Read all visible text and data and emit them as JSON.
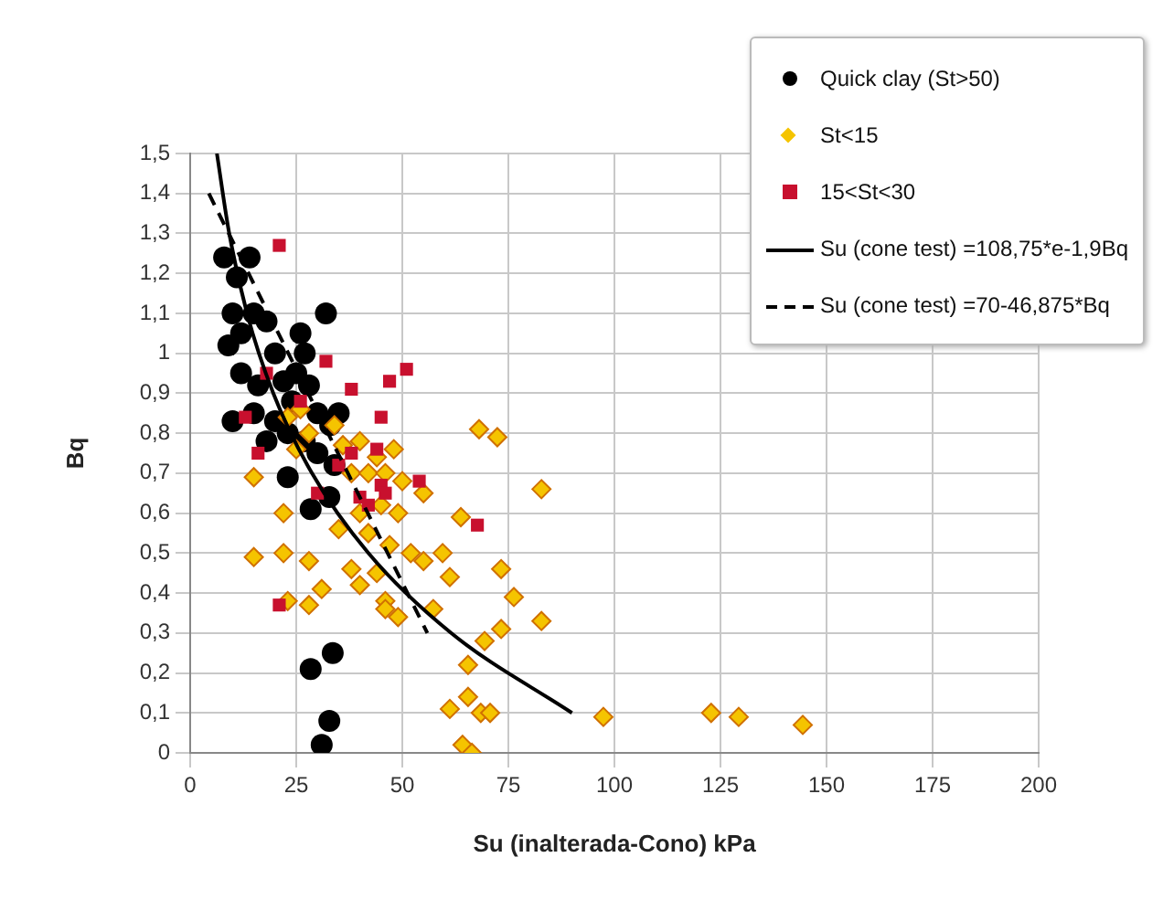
{
  "chart_data": {
    "type": "scatter",
    "xlabel": "Su (inalterada-Cono) kPa",
    "ylabel": "Bq",
    "xlim": [
      0,
      200
    ],
    "xticks": [
      0,
      25,
      50,
      75,
      100,
      125,
      150,
      175,
      200
    ],
    "ylim": [
      0,
      1.5
    ],
    "yticks": [
      0,
      {
        "value": 0.1,
        "label": "0,1"
      },
      {
        "value": 0.2,
        "label": "0,2"
      },
      {
        "value": 0.3,
        "label": "0,3"
      },
      {
        "value": 0.4,
        "label": "0,4"
      },
      {
        "value": 0.5,
        "label": "0,5"
      },
      {
        "value": 0.6,
        "label": "0,6"
      },
      {
        "value": 0.7,
        "label": "0,7"
      },
      {
        "value": 0.8,
        "label": "0,8"
      },
      {
        "value": 0.9,
        "label": "0,9"
      },
      1,
      {
        "value": 1.1,
        "label": "1,1"
      },
      {
        "value": 1.2,
        "label": "1,2"
      },
      {
        "value": 1.3,
        "label": "1,3"
      },
      {
        "value": 1.4,
        "label": "1,4"
      },
      {
        "value": 1.5,
        "label": "1,5"
      }
    ],
    "grid": true,
    "legend": "top right",
    "series": [
      {
        "name": "Quick clay (St>50)",
        "type": "scatter",
        "marker": "circle",
        "color": "#000000",
        "x": [
          8,
          11,
          14,
          10,
          12,
          9,
          15,
          18,
          20,
          26,
          32,
          27,
          12,
          16,
          22,
          25,
          28,
          10,
          15,
          20,
          24,
          30,
          33,
          35,
          23,
          27,
          18,
          30,
          34,
          23,
          28.4,
          32.8,
          28.4,
          33.6,
          32.8,
          31
        ],
        "values": [
          1.24,
          1.19,
          1.24,
          1.1,
          1.05,
          1.02,
          1.1,
          1.08,
          1.0,
          1.05,
          1.1,
          1.0,
          0.95,
          0.92,
          0.93,
          0.95,
          0.92,
          0.83,
          0.85,
          0.83,
          0.88,
          0.85,
          0.82,
          0.85,
          0.8,
          0.78,
          0.78,
          0.75,
          0.72,
          0.69,
          0.61,
          0.64,
          0.21,
          0.25,
          0.08,
          0.02
        ]
      },
      {
        "name": "St<15",
        "type": "scatter",
        "marker": "diamond",
        "color": "#f5c400",
        "x": [
          23,
          26,
          28,
          25,
          34,
          36,
          40,
          44,
          48,
          38,
          42,
          46,
          50,
          45,
          40,
          49,
          55,
          15,
          22,
          35,
          42,
          47,
          52,
          15,
          22,
          28,
          38,
          44,
          55,
          40,
          46,
          49,
          31,
          28,
          23,
          46,
          68.1,
          72.4,
          82.8,
          63.8,
          59.5,
          61.2,
          73.3,
          76.3,
          82.8,
          73.3,
          69.4,
          57.3,
          65.5,
          61.2,
          65.5,
          68.5,
          70.7,
          64.2,
          66.4,
          97.4,
          122.8,
          129.3,
          144.4
        ],
        "values": [
          0.84,
          0.86,
          0.8,
          0.76,
          0.82,
          0.77,
          0.78,
          0.74,
          0.76,
          0.7,
          0.7,
          0.7,
          0.68,
          0.62,
          0.6,
          0.6,
          0.65,
          0.69,
          0.6,
          0.56,
          0.55,
          0.52,
          0.5,
          0.49,
          0.5,
          0.48,
          0.46,
          0.45,
          0.48,
          0.42,
          0.38,
          0.34,
          0.41,
          0.37,
          0.38,
          0.36,
          0.81,
          0.79,
          0.66,
          0.59,
          0.5,
          0.44,
          0.46,
          0.39,
          0.33,
          0.31,
          0.28,
          0.36,
          0.22,
          0.11,
          0.14,
          0.1,
          0.1,
          0.02,
          0.0,
          0.09,
          0.1,
          0.09,
          0.07
        ]
      },
      {
        "name": "15<St<30",
        "type": "scatter",
        "marker": "square",
        "color": "#c8102e",
        "x": [
          21,
          13,
          16,
          21,
          18,
          32,
          38,
          45,
          47,
          51,
          26,
          30,
          35,
          40,
          45,
          42,
          54,
          46,
          67.7,
          38,
          44
        ],
        "values": [
          1.27,
          0.84,
          0.75,
          0.37,
          0.95,
          0.98,
          0.91,
          0.84,
          0.93,
          0.96,
          0.88,
          0.65,
          0.72,
          0.64,
          0.67,
          0.62,
          0.68,
          0.65,
          0.57,
          0.75,
          0.76
        ]
      },
      {
        "name": "Su (cone test) =108,75*e-1,9Bq",
        "type": "line",
        "marker": "none",
        "line_style": "solid",
        "color": "#000000",
        "x": [
          6.3,
          9.2,
          13.4,
          19.6,
          28.7,
          42.0,
          61.5,
          90.0
        ],
        "values": [
          1.5,
          1.3,
          1.1,
          0.9,
          0.7,
          0.5,
          0.3,
          0.1
        ]
      },
      {
        "name": "Su (cone test) =70-46,875*Bq",
        "type": "line",
        "marker": "none",
        "line_style": "dashed",
        "color": "#000000",
        "x": [
          4.4,
          55.9
        ],
        "values": [
          1.4,
          0.3
        ]
      }
    ]
  }
}
